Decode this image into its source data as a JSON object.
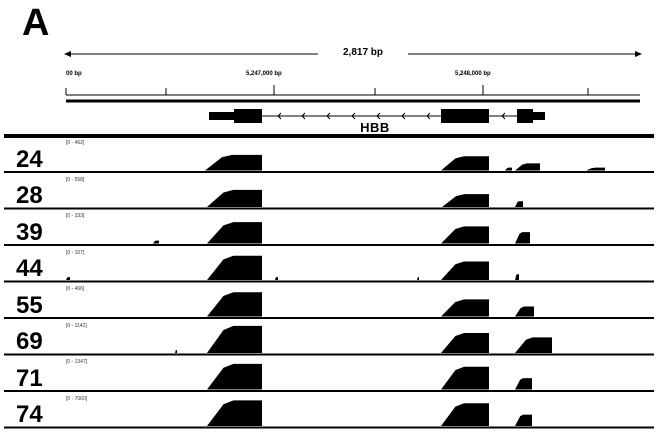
{
  "panel_label": "A",
  "ruler": {
    "span_label": "2,817 bp",
    "coord_left": "00 bp",
    "coord_mid": "5,247,000 bp",
    "coord_right": "5,248,000 bp"
  },
  "gene": {
    "name": "HBB"
  },
  "tracks": [
    {
      "sample": "24",
      "range": "[0 - 462]"
    },
    {
      "sample": "28",
      "range": "[0 - 558]"
    },
    {
      "sample": "39",
      "range": "[0 - 333]"
    },
    {
      "sample": "44",
      "range": "[0 - 107]"
    },
    {
      "sample": "55",
      "range": "[0 - 466]"
    },
    {
      "sample": "69",
      "range": "[0 - 1142]"
    },
    {
      "sample": "71",
      "range": "[0 - 1347]"
    },
    {
      "sample": "74",
      "range": "[0 - 7060]"
    }
  ],
  "colors": {
    "fill": "#000000",
    "background": "#ffffff"
  }
}
